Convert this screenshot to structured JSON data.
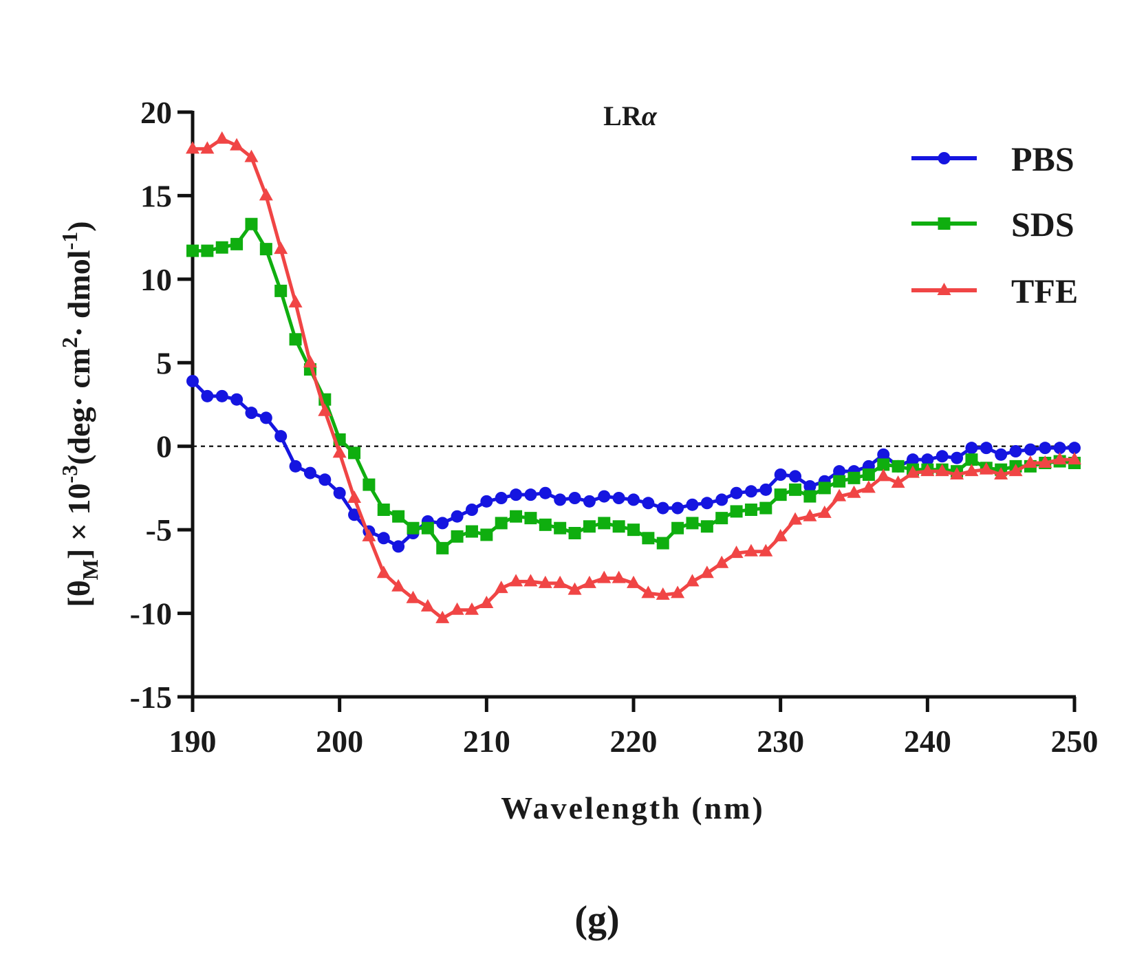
{
  "chart_data": {
    "type": "line",
    "title": "LR",
    "title_suffix": "α",
    "panel_label": "(g)",
    "xlabel": "Wavelength (nm)",
    "ylabel": {
      "prefix": "[θ",
      "subscript": "M",
      "middle": "] × 10",
      "exp1": "-3",
      "unit_a": "(deg· cm",
      "exp2": "2",
      "unit_b": "· dmol",
      "exp3": "-1",
      "suffix": ")"
    },
    "xlim": [
      190,
      250
    ],
    "ylim": [
      -15,
      20
    ],
    "xticks": [
      190,
      200,
      210,
      220,
      230,
      240,
      250
    ],
    "yticks": [
      -15,
      -10,
      -5,
      0,
      5,
      10,
      15,
      20
    ],
    "zero_line": true,
    "legend_position": "top-right",
    "x": [
      190,
      191,
      192,
      193,
      194,
      195,
      196,
      197,
      198,
      199,
      200,
      201,
      202,
      203,
      204,
      205,
      206,
      207,
      208,
      209,
      210,
      211,
      212,
      213,
      214,
      215,
      216,
      217,
      218,
      219,
      220,
      221,
      222,
      223,
      224,
      225,
      226,
      227,
      228,
      229,
      230,
      231,
      232,
      233,
      234,
      235,
      236,
      237,
      238,
      239,
      240,
      241,
      242,
      243,
      244,
      245,
      246,
      247,
      248,
      249,
      250
    ],
    "series": [
      {
        "name": "PBS",
        "color": "#1515e0",
        "marker": "circle",
        "values": [
          3.9,
          3.0,
          3.0,
          2.8,
          2.0,
          1.7,
          0.6,
          -1.2,
          -1.6,
          -2.0,
          -2.8,
          -4.1,
          -5.1,
          -5.5,
          -6.0,
          -5.2,
          -4.5,
          -4.6,
          -4.2,
          -3.8,
          -3.3,
          -3.1,
          -2.9,
          -2.9,
          -2.8,
          -3.2,
          -3.1,
          -3.3,
          -3.0,
          -3.1,
          -3.2,
          -3.4,
          -3.7,
          -3.7,
          -3.5,
          -3.4,
          -3.2,
          -2.8,
          -2.7,
          -2.6,
          -1.7,
          -1.8,
          -2.4,
          -2.1,
          -1.5,
          -1.5,
          -1.2,
          -0.5,
          -1.2,
          -0.8,
          -0.8,
          -0.6,
          -0.7,
          -0.1,
          -0.1,
          -0.5,
          -0.3,
          -0.2,
          -0.1,
          -0.1,
          -0.1
        ]
      },
      {
        "name": "SDS",
        "color": "#0fae0f",
        "marker": "square",
        "values": [
          11.7,
          11.7,
          11.9,
          12.1,
          13.3,
          11.8,
          9.3,
          6.4,
          4.6,
          2.8,
          0.4,
          -0.4,
          -2.3,
          -3.8,
          -4.2,
          -4.9,
          -4.9,
          -6.1,
          -5.4,
          -5.1,
          -5.3,
          -4.6,
          -4.2,
          -4.3,
          -4.7,
          -4.9,
          -5.2,
          -4.8,
          -4.6,
          -4.8,
          -5.0,
          -5.5,
          -5.8,
          -4.9,
          -4.6,
          -4.8,
          -4.3,
          -3.9,
          -3.8,
          -3.7,
          -2.9,
          -2.6,
          -3.0,
          -2.5,
          -2.1,
          -1.9,
          -1.7,
          -1.1,
          -1.2,
          -1.4,
          -1.4,
          -1.4,
          -1.5,
          -0.8,
          -1.3,
          -1.4,
          -1.2,
          -1.2,
          -1.0,
          -0.9,
          -1.0
        ]
      },
      {
        "name": "TFE",
        "color": "#f04545",
        "marker": "triangle",
        "values": [
          17.8,
          17.8,
          18.4,
          18.0,
          17.3,
          15.0,
          11.8,
          8.6,
          5.0,
          2.1,
          -0.4,
          -3.1,
          -5.4,
          -7.6,
          -8.4,
          -9.1,
          -9.6,
          -10.3,
          -9.8,
          -9.8,
          -9.4,
          -8.5,
          -8.1,
          -8.1,
          -8.2,
          -8.2,
          -8.6,
          -8.2,
          -7.9,
          -7.9,
          -8.2,
          -8.8,
          -8.9,
          -8.8,
          -8.1,
          -7.6,
          -7.0,
          -6.4,
          -6.3,
          -6.3,
          -5.4,
          -4.4,
          -4.2,
          -4.0,
          -3.0,
          -2.8,
          -2.5,
          -1.8,
          -2.2,
          -1.6,
          -1.5,
          -1.5,
          -1.7,
          -1.5,
          -1.4,
          -1.7,
          -1.5,
          -1.0,
          -1.0,
          -0.8,
          -0.8
        ]
      }
    ]
  }
}
